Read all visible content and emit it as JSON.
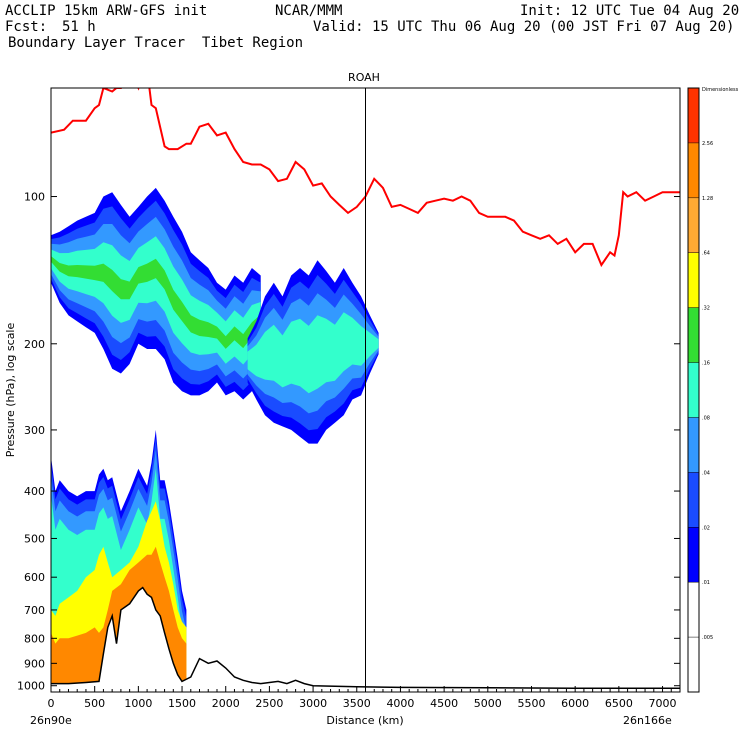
{
  "header": {
    "model": "ACCLIP 15km ARW-GFS init",
    "org": "NCAR/MMM",
    "init": "Init: 12 UTC Tue 04 Aug 20",
    "fcst_label": "Fcst:",
    "fcst_value": "51 h",
    "valid": "Valid: 15 UTC Thu 06 Aug 20 (00 JST Fri 07 Aug 20)",
    "field": "Boundary Layer Tracer  Tibet Region"
  },
  "chart_data": {
    "type": "contour-cross-section",
    "xlabel": "Distance (km)",
    "ylabel": "Pressure (hPa), log scale",
    "xlim": [
      0,
      7200
    ],
    "ylim": [
      1030,
      60
    ],
    "y_scale": "log",
    "x_ticks": [
      0,
      500,
      1000,
      1500,
      2000,
      2500,
      3000,
      3500,
      4000,
      4500,
      5000,
      5500,
      6000,
      6500,
      7000
    ],
    "y_ticks": [
      100,
      200,
      300,
      400,
      500,
      600,
      700,
      800,
      900,
      1000
    ],
    "start_label": "26n90e",
    "end_label": "26n166e",
    "marker": {
      "label": "ROAH",
      "x": 3600
    },
    "colorbar": {
      "title": "Dimensionless",
      "labels": [
        ".005",
        ".01",
        ".02",
        ".04",
        ".08",
        ".16",
        ".32",
        ".64",
        "1.28",
        "2.56"
      ],
      "colors": [
        "#ffffff",
        "#ffffff",
        "#0000ff",
        "#1a4cff",
        "#3399ff",
        "#33ffcc",
        "#33dd33",
        "#ffff00",
        "#ffaa33",
        "#ff8800",
        "#ff3300"
      ]
    },
    "tropopause": {
      "color": "#ff0000",
      "x": [
        0,
        150,
        250,
        400,
        500,
        550,
        600,
        700,
        750,
        800,
        850,
        900,
        950,
        1000,
        1050,
        1100,
        1150,
        1200,
        1300,
        1350,
        1450,
        1550,
        1600,
        1650,
        1700,
        1800,
        1900,
        2000,
        2100,
        2200,
        2300,
        2400,
        2500,
        2600,
        2700,
        2800,
        2900,
        3000,
        3100,
        3200,
        3300,
        3400,
        3500,
        3600,
        3700,
        3800,
        3900,
        4000,
        4100,
        4200,
        4300,
        4400,
        4500,
        4600,
        4700,
        4800,
        4900,
        5000,
        5100,
        5200,
        5300,
        5400,
        5500,
        5600,
        5700,
        5800,
        5900,
        6000,
        6100,
        6200,
        6300,
        6400,
        6450,
        6500,
        6550,
        6600,
        6700,
        6800,
        6900,
        7000,
        7100,
        7200
      ],
      "y": [
        74,
        73,
        70,
        70,
        66,
        65,
        60,
        61,
        60,
        60,
        55,
        55,
        58,
        60,
        55,
        55,
        65,
        66,
        79,
        80,
        80,
        78,
        78,
        75,
        72,
        71,
        75,
        74,
        80,
        85,
        86,
        86,
        88,
        93,
        92,
        85,
        88,
        95,
        94,
        100,
        104,
        108,
        105,
        100,
        92,
        96,
        105,
        104,
        106,
        108,
        103,
        102,
        101,
        102,
        100,
        102,
        108,
        110,
        110,
        110,
        112,
        118,
        120,
        122,
        120,
        125,
        122,
        130,
        125,
        125,
        138,
        130,
        132,
        120,
        98,
        100,
        98,
        102,
        100,
        98,
        98,
        98
      ]
    },
    "terrain": {
      "color": "#000000",
      "x": [
        0,
        200,
        400,
        550,
        600,
        650,
        700,
        750,
        800,
        900,
        1000,
        1050,
        1100,
        1150,
        1200,
        1250,
        1300,
        1350,
        1400,
        1450,
        1500,
        1600,
        1700,
        1800,
        1900,
        2000,
        2100,
        2200,
        2300,
        2400,
        2500,
        2600,
        2700,
        2800,
        2900,
        3000,
        3500,
        4000,
        5000,
        6000,
        7200
      ],
      "y": [
        990,
        990,
        985,
        980,
        860,
        760,
        720,
        820,
        700,
        680,
        640,
        630,
        650,
        660,
        700,
        720,
        780,
        840,
        900,
        950,
        980,
        960,
        880,
        900,
        890,
        920,
        960,
        975,
        985,
        990,
        985,
        980,
        990,
        975,
        990,
        1000,
        1005,
        1008,
        1010,
        1012,
        1012
      ]
    },
    "lower_plume": {
      "x": [
        0,
        50,
        100,
        200,
        300,
        400,
        500,
        550,
        600,
        650,
        700,
        800,
        900,
        1000,
        1100,
        1150,
        1200,
        1250,
        1300,
        1350,
        1400,
        1450,
        1500,
        1550
      ],
      "top_y": [
        340,
        400,
        380,
        400,
        410,
        400,
        400,
        370,
        360,
        380,
        375,
        440,
        400,
        360,
        390,
        350,
        300,
        380,
        380,
        420,
        480,
        550,
        640,
        700
      ],
      "yellow_top_y": [
        700,
        720,
        680,
        660,
        640,
        600,
        580,
        540,
        520,
        560,
        600,
        580,
        560,
        520,
        460,
        440,
        420,
        460,
        520,
        560,
        620,
        700,
        740,
        760
      ],
      "orange_top_y": [
        780,
        820,
        800,
        800,
        790,
        780,
        760,
        780,
        760,
        700,
        640,
        620,
        580,
        560,
        540,
        540,
        520,
        560,
        600,
        640,
        700,
        760,
        800,
        820
      ]
    },
    "upper_plume_west": {
      "x": [
        0,
        100,
        200,
        300,
        400,
        500,
        600,
        700,
        800,
        900,
        1000,
        1100,
        1200,
        1300,
        1400,
        1500,
        1600,
        1700,
        1800,
        1900,
        2000,
        2100,
        2200,
        2300,
        2400
      ],
      "top_y": [
        120,
        118,
        115,
        112,
        110,
        108,
        100,
        98,
        104,
        110,
        105,
        100,
        96,
        102,
        110,
        118,
        130,
        135,
        140,
        150,
        155,
        145,
        150,
        140,
        145
      ],
      "bottom_y": [
        150,
        165,
        175,
        180,
        185,
        190,
        205,
        225,
        230,
        220,
        200,
        205,
        205,
        215,
        240,
        250,
        255,
        255,
        250,
        240,
        255,
        250,
        260,
        250,
        220
      ]
    },
    "upper_plume_east": {
      "x": [
        2250,
        2350,
        2450,
        2550,
        2650,
        2750,
        2850,
        2950,
        3050,
        3150,
        3250,
        3350,
        3450,
        3550,
        3650,
        3750
      ],
      "top_y": [
        195,
        180,
        160,
        150,
        160,
        145,
        140,
        145,
        135,
        142,
        150,
        140,
        150,
        160,
        175,
        190
      ],
      "bottom_y": [
        240,
        260,
        280,
        290,
        295,
        300,
        310,
        320,
        320,
        300,
        290,
        280,
        260,
        255,
        230,
        210
      ]
    }
  }
}
